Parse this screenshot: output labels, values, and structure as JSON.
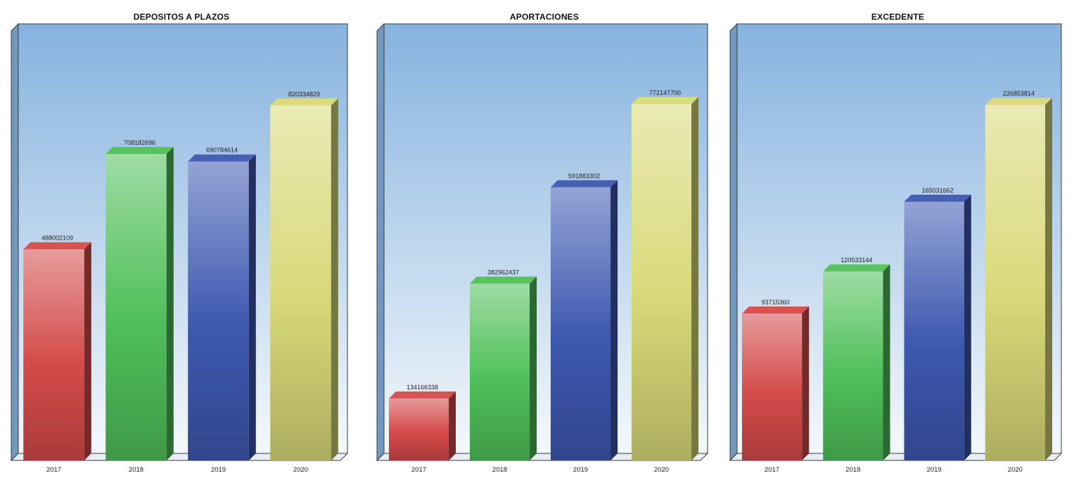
{
  "colors": {
    "bg_top": "#86b3df",
    "bg_bottom": "#f4f8fb",
    "frame": "#3a3a3a",
    "red": "#d44a4a",
    "green": "#4fbf59",
    "blue": "#3d58b0",
    "yellow": "#d8d878"
  },
  "chart_data": [
    {
      "type": "bar",
      "title": "DEPOSITOS A PLAZOS",
      "categories": [
        "2017",
        "2018",
        "2019",
        "2020"
      ],
      "values": [
        488002109,
        708182696,
        690784614,
        820334829
      ],
      "value_labels": [
        "488002109",
        "708182696",
        "690784614",
        "820334829"
      ],
      "ylim": [
        0,
        960000000
      ],
      "grid": false,
      "bar_colors": [
        "red",
        "green",
        "blue",
        "yellow"
      ]
    },
    {
      "type": "bar",
      "title": "APORTACIONES",
      "categories": [
        "2017",
        "2018",
        "2019",
        "2020"
      ],
      "values": [
        134166338,
        382962437,
        591883302,
        772147700
      ],
      "value_labels": [
        "134166338",
        "382962437",
        "591883302",
        "772147700"
      ],
      "ylim": [
        0,
        900000000
      ],
      "grid": false,
      "bar_colors": [
        "red",
        "green",
        "blue",
        "yellow"
      ]
    },
    {
      "type": "bar",
      "title": "EXCEDENTE",
      "categories": [
        "2017",
        "2018",
        "2019",
        "2020"
      ],
      "values": [
        93715360,
        120533144,
        165031662,
        226853814
      ],
      "value_labels": [
        "93715360",
        "120533144",
        "165031662",
        "226853814"
      ],
      "ylim": [
        0,
        265000000
      ],
      "grid": false,
      "x_tick_labels": [
        "2017",
        "2018",
        "2019",
        "2020"
      ],
      "bar_colors": [
        "red",
        "green",
        "blue",
        "yellow"
      ]
    }
  ]
}
